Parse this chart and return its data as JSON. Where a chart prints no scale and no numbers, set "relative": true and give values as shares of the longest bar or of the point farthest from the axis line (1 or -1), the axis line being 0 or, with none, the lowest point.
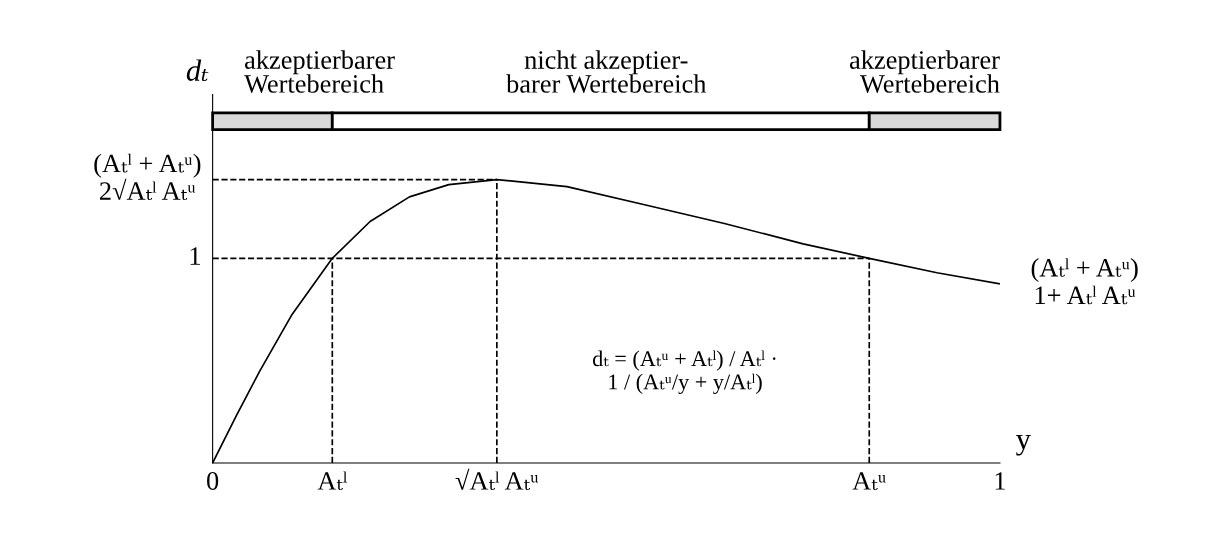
{
  "chart_data": {
    "type": "line",
    "relative": true,
    "xlabel": "y",
    "ylabel": "dₜ",
    "x": [
      0,
      0.03,
      0.06,
      0.1,
      0.152,
      0.2,
      0.25,
      0.3,
      0.361,
      0.45,
      0.55,
      0.65,
      0.75,
      0.834,
      0.92,
      1.0
    ],
    "series": [
      {
        "color": "#000000",
        "values": [
          0,
          0.166,
          0.325,
          0.52,
          0.722,
          0.852,
          0.939,
          0.982,
          1,
          0.975,
          0.91,
          0.845,
          0.773,
          0.722,
          0.671,
          0.632
        ]
      }
    ],
    "xlim": [
      0,
      1
    ],
    "xticks": [
      0,
      {
        "value": 0.152,
        "label": "Aₜˡ"
      },
      {
        "value": 0.361,
        "label": "√Aₜˡ Aₜᵘ"
      },
      {
        "value": 0.834,
        "label": "Aₜᵘ"
      },
      1
    ],
    "ref_lines": [
      {
        "axis": "x",
        "value": 0.152,
        "line_style": "dashed"
      },
      {
        "axis": "x",
        "value": 0.361,
        "line_style": "dashed"
      },
      {
        "axis": "x",
        "value": 0.834,
        "line_style": "dashed"
      },
      {
        "axis": "y",
        "value": 0.722,
        "line_style": "dashed",
        "label": "1"
      },
      {
        "axis": "y",
        "value": 1,
        "line_style": "dashed",
        "label": "(Aₜˡ + Aₜᵘ)\n2√Aₜˡ Aₜᵘ"
      }
    ],
    "annotations": [
      "akzeptierbarer\nWertebereich",
      "nicht akzeptier-\nbarer Wertebereich",
      "akzeptierbarer\nWertebereich",
      {
        "text": "(Aₜˡ + Aₜᵘ)\n1+ Aₜˡ Aₜᵘ",
        "x": 1.0,
        "y": 0.632
      },
      "dₜ = (Aₜᵘ + Aₜˡ) / Aₜˡ ·\n1 / (Aₜᵘ/y + y/Aₜˡ)"
    ],
    "grid": false,
    "marker": "none",
    "line_style": "solid",
    "legend": false
  }
}
